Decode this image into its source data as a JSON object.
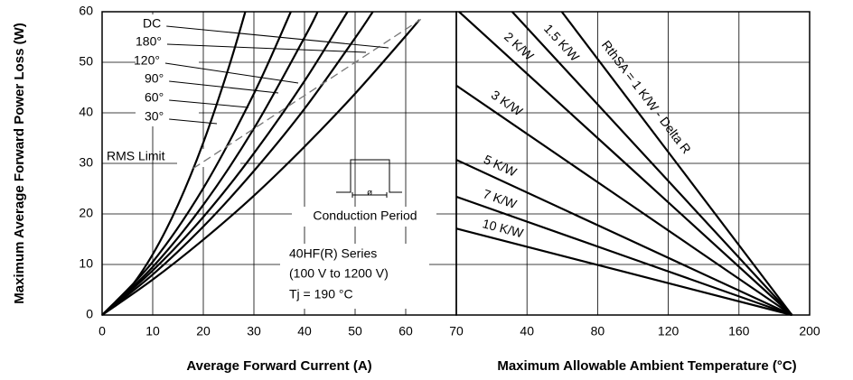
{
  "chart_data": [
    {
      "type": "line",
      "ylabel": "Maximum Average Forward Power Loss (W)",
      "xlabel": "Average Forward Current (A)",
      "xlim": [
        0,
        70
      ],
      "xticks": [
        0,
        10,
        20,
        30,
        40,
        50,
        60,
        70
      ],
      "ylim": [
        0,
        60
      ],
      "yticks": [
        0,
        10,
        20,
        30,
        40,
        50,
        60
      ],
      "grid": true,
      "color": "#000000",
      "series": [
        {
          "name": "DC",
          "x": [
            0,
            5,
            10,
            15,
            20,
            25,
            28.3
          ],
          "values": [
            0,
            4.7,
            12,
            21.8,
            34.1,
            48.9,
            60
          ]
        },
        {
          "name": "180°",
          "x": [
            0,
            10,
            20,
            30,
            37.3
          ],
          "values": [
            0,
            10.5,
            25.1,
            43.8,
            60
          ]
        },
        {
          "name": "120°",
          "x": [
            0,
            10,
            20,
            30,
            40,
            42.6
          ],
          "values": [
            0,
            9.5,
            21.8,
            36.9,
            54.9,
            60
          ]
        },
        {
          "name": "90°",
          "x": [
            0,
            10,
            20,
            30,
            40,
            48.5
          ],
          "values": [
            0,
            8.8,
            19.4,
            32,
            46.3,
            60
          ]
        },
        {
          "name": "60°",
          "x": [
            0,
            10,
            20,
            30,
            40,
            50,
            53.5
          ],
          "values": [
            0,
            8,
            17.5,
            28.5,
            40.8,
            54.8,
            60
          ]
        },
        {
          "name": "30°",
          "x": [
            0,
            10,
            20,
            30,
            40,
            50,
            60,
            62.7
          ],
          "values": [
            0,
            7,
            14.9,
            23.6,
            33.3,
            43.8,
            55.2,
            58.4
          ]
        },
        {
          "name": "RMS Limit",
          "x": [
            18,
            63
          ],
          "values": [
            29,
            58.5
          ],
          "dashed": true,
          "color": "#777777"
        }
      ],
      "annotations": [
        "Conduction Period",
        "40HF(R) Series",
        "(100 V to 1200 V)",
        "Tj = 190  °C"
      ]
    },
    {
      "type": "line",
      "xlabel": "Maximum Allowable Ambient Temperature (°C)",
      "xlim": [
        0,
        200
      ],
      "xticks": [
        40,
        80,
        120,
        160,
        200
      ],
      "ylim": [
        0,
        60
      ],
      "grid": true,
      "color": "#000000",
      "series": [
        {
          "name": "RthSA = 1 K/W - Delta R",
          "x": [
            59.7,
            190
          ],
          "values": [
            60,
            0
          ]
        },
        {
          "name": "1.5 K/W",
          "x": [
            31.6,
            190
          ],
          "values": [
            60,
            0
          ]
        },
        {
          "name": "2 K/W",
          "x": [
            1.5,
            190
          ],
          "values": [
            60,
            0
          ]
        },
        {
          "name": "3 K/W",
          "x": [
            0,
            190
          ],
          "values": [
            45.4,
            0
          ]
        },
        {
          "name": "5 K/W",
          "x": [
            0,
            190
          ],
          "values": [
            30.7,
            0
          ]
        },
        {
          "name": "7 K/W",
          "x": [
            0,
            190
          ],
          "values": [
            23.4,
            0
          ]
        },
        {
          "name": "10 K/W",
          "x": [
            0,
            190
          ],
          "values": [
            17.1,
            0
          ]
        }
      ]
    }
  ]
}
